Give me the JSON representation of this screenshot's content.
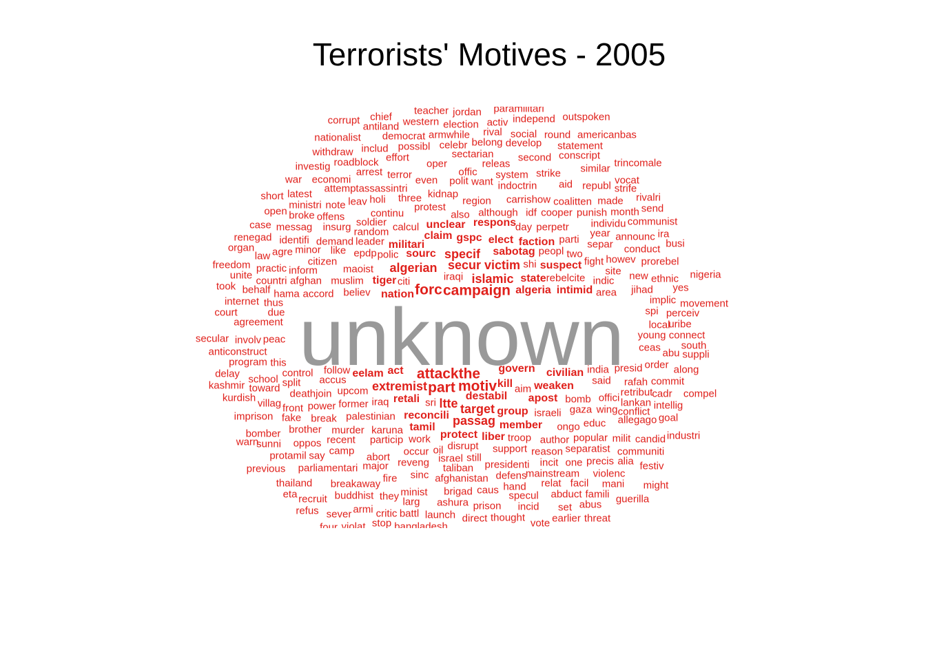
{
  "title": "Terrorists' Motives - 2005",
  "colors": {
    "words": "#e0201b",
    "dominant": "#999999"
  },
  "dominant_word": "unknown",
  "words": [
    {
      "t": "teacher",
      "s": 1
    },
    {
      "t": "jordan",
      "s": 1
    },
    {
      "t": "paramilitari",
      "s": 1
    },
    {
      "t": "corrupt",
      "s": 1
    },
    {
      "t": "chief",
      "s": 1
    },
    {
      "t": "western",
      "s": 1
    },
    {
      "t": "election",
      "s": 1
    },
    {
      "t": "activ",
      "s": 1
    },
    {
      "t": "independ",
      "s": 1
    },
    {
      "t": "outspoken",
      "s": 1
    },
    {
      "t": "antiland",
      "s": 1
    },
    {
      "t": "nationalist",
      "s": 1
    },
    {
      "t": "democrat",
      "s": 1
    },
    {
      "t": "armwhile",
      "s": 1
    },
    {
      "t": "rival",
      "s": 1
    },
    {
      "t": "social",
      "s": 1
    },
    {
      "t": "round",
      "s": 1
    },
    {
      "t": "americanbas",
      "s": 1
    },
    {
      "t": "includ",
      "s": 1
    },
    {
      "t": "possibl",
      "s": 1
    },
    {
      "t": "celebr",
      "s": 1
    },
    {
      "t": "belong",
      "s": 1
    },
    {
      "t": "develop",
      "s": 1
    },
    {
      "t": "statement",
      "s": 1
    },
    {
      "t": "withdraw",
      "s": 1
    },
    {
      "t": "effort",
      "s": 1
    },
    {
      "t": "sectarian",
      "s": 1
    },
    {
      "t": "second",
      "s": 1
    },
    {
      "t": "conscript",
      "s": 1
    },
    {
      "t": "investig",
      "s": 1
    },
    {
      "t": "roadblock",
      "s": 1
    },
    {
      "t": "oper",
      "s": 1
    },
    {
      "t": "releas",
      "s": 1
    },
    {
      "t": "trincomale",
      "s": 1
    },
    {
      "t": "arrest",
      "s": 1
    },
    {
      "t": "terror",
      "s": 1
    },
    {
      "t": "offic",
      "s": 1
    },
    {
      "t": "system",
      "s": 1
    },
    {
      "t": "strike",
      "s": 1
    },
    {
      "t": "similar",
      "s": 1
    },
    {
      "t": "war",
      "s": 1
    },
    {
      "t": "economi",
      "s": 1
    },
    {
      "t": "even",
      "s": 1
    },
    {
      "t": "polit",
      "s": 1
    },
    {
      "t": "want",
      "s": 1
    },
    {
      "t": "indoctrin",
      "s": 1
    },
    {
      "t": "aid",
      "s": 1
    },
    {
      "t": "republ",
      "s": 1
    },
    {
      "t": "vocat",
      "s": 1
    },
    {
      "t": "attemptassassintri",
      "s": 1
    },
    {
      "t": "strife",
      "s": 1
    },
    {
      "t": "short",
      "s": 1
    },
    {
      "t": "latest",
      "s": 1
    },
    {
      "t": "kidnap",
      "s": 1
    },
    {
      "t": "carrishow",
      "s": 1
    },
    {
      "t": "rivalri",
      "s": 1
    },
    {
      "t": "ministri",
      "s": 1
    },
    {
      "t": "note",
      "s": 1
    },
    {
      "t": "leav",
      "s": 1
    },
    {
      "t": "holi",
      "s": 1
    },
    {
      "t": "three",
      "s": 1
    },
    {
      "t": "region",
      "s": 1
    },
    {
      "t": "coalitten",
      "s": 1
    },
    {
      "t": "made",
      "s": 1
    },
    {
      "t": "protest",
      "s": 1
    },
    {
      "t": "send",
      "s": 1
    },
    {
      "t": "open",
      "s": 1
    },
    {
      "t": "broke",
      "s": 1
    },
    {
      "t": "offens",
      "s": 1
    },
    {
      "t": "continu",
      "s": 1
    },
    {
      "t": "also",
      "s": 1
    },
    {
      "t": "although",
      "s": 1
    },
    {
      "t": "idf",
      "s": 1
    },
    {
      "t": "cooper",
      "s": 1
    },
    {
      "t": "punish",
      "s": 1
    },
    {
      "t": "month",
      "s": 1
    },
    {
      "t": "soldier",
      "s": 1
    },
    {
      "t": "communist",
      "s": 1
    },
    {
      "t": "case",
      "s": 1
    },
    {
      "t": "messag",
      "s": 1
    },
    {
      "t": "insurg",
      "s": 1
    },
    {
      "t": "calcul",
      "s": 1
    },
    {
      "t": "unclear",
      "s": 2
    },
    {
      "t": "respons",
      "s": 2
    },
    {
      "t": "day",
      "s": 1
    },
    {
      "t": "perpetr",
      "s": 1
    },
    {
      "t": "individu",
      "s": 1
    },
    {
      "t": "random",
      "s": 1
    },
    {
      "t": "year",
      "s": 1
    },
    {
      "t": "ira",
      "s": 1
    },
    {
      "t": "renegad",
      "s": 1
    },
    {
      "t": "identifi",
      "s": 1
    },
    {
      "t": "demand",
      "s": 1
    },
    {
      "t": "leader",
      "s": 1
    },
    {
      "t": "claim",
      "s": 2
    },
    {
      "t": "gspc",
      "s": 2
    },
    {
      "t": "elect",
      "s": 2
    },
    {
      "t": "faction",
      "s": 2
    },
    {
      "t": "parti",
      "s": 1
    },
    {
      "t": "announc",
      "s": 1
    },
    {
      "t": "organ",
      "s": 1
    },
    {
      "t": "militari",
      "s": 2
    },
    {
      "t": "separ",
      "s": 1
    },
    {
      "t": "busi",
      "s": 1
    },
    {
      "t": "law",
      "s": 1
    },
    {
      "t": "agre",
      "s": 1
    },
    {
      "t": "minor",
      "s": 1
    },
    {
      "t": "like",
      "s": 1
    },
    {
      "t": "epdp",
      "s": 1
    },
    {
      "t": "polic",
      "s": 1
    },
    {
      "t": "sourc",
      "s": 2
    },
    {
      "t": "specif",
      "s": 3
    },
    {
      "t": "sabotag",
      "s": 2
    },
    {
      "t": "peopl",
      "s": 1
    },
    {
      "t": "two",
      "s": 1
    },
    {
      "t": "conduct",
      "s": 1
    },
    {
      "t": "citizen",
      "s": 1
    },
    {
      "t": "fight",
      "s": 1
    },
    {
      "t": "howev",
      "s": 1
    },
    {
      "t": "prorebel",
      "s": 1
    },
    {
      "t": "freedom",
      "s": 1
    },
    {
      "t": "practic",
      "s": 1
    },
    {
      "t": "inform",
      "s": 1
    },
    {
      "t": "maoist",
      "s": 1
    },
    {
      "t": "algerian",
      "s": 3
    },
    {
      "t": "secur",
      "s": 3
    },
    {
      "t": "victim",
      "s": 3
    },
    {
      "t": "shi",
      "s": 1
    },
    {
      "t": "suspect",
      "s": 2
    },
    {
      "t": "site",
      "s": 1
    },
    {
      "t": "unite",
      "s": 1
    },
    {
      "t": "iraqi",
      "s": 1
    },
    {
      "t": "islamic",
      "s": 3
    },
    {
      "t": "state",
      "s": 2
    },
    {
      "t": "rebelcite",
      "s": 1
    },
    {
      "t": "new",
      "s": 1
    },
    {
      "t": "ethnic",
      "s": 1
    },
    {
      "t": "nigeria",
      "s": 1
    },
    {
      "t": "took",
      "s": 1
    },
    {
      "t": "countri",
      "s": 1
    },
    {
      "t": "afghan",
      "s": 1
    },
    {
      "t": "muslim",
      "s": 1
    },
    {
      "t": "tiger",
      "s": 2
    },
    {
      "t": "citi",
      "s": 1
    },
    {
      "t": "indic",
      "s": 1
    },
    {
      "t": "behalf",
      "s": 1
    },
    {
      "t": "hama",
      "s": 1
    },
    {
      "t": "accord",
      "s": 1
    },
    {
      "t": "believ",
      "s": 1
    },
    {
      "t": "forc",
      "s": 4
    },
    {
      "t": "campaign",
      "s": 4
    },
    {
      "t": "algeria",
      "s": 2
    },
    {
      "t": "intimid",
      "s": 2
    },
    {
      "t": "area",
      "s": 1
    },
    {
      "t": "jihad",
      "s": 1
    },
    {
      "t": "yes",
      "s": 1
    },
    {
      "t": "nation",
      "s": 2
    },
    {
      "t": "internet",
      "s": 1
    },
    {
      "t": "thus",
      "s": 1
    },
    {
      "t": "implic",
      "s": 1
    },
    {
      "t": "movement",
      "s": 1
    },
    {
      "t": "court",
      "s": 1
    },
    {
      "t": "due",
      "s": 1
    },
    {
      "t": "spi",
      "s": 1
    },
    {
      "t": "perceiv",
      "s": 1
    },
    {
      "t": "agreement",
      "s": 1
    },
    {
      "t": "local",
      "s": 1
    },
    {
      "t": "uribe",
      "s": 1
    },
    {
      "t": "young",
      "s": 1
    },
    {
      "t": "connect",
      "s": 1
    },
    {
      "t": "secular",
      "s": 1
    },
    {
      "t": "involv",
      "s": 1
    },
    {
      "t": "peac",
      "s": 1
    },
    {
      "t": "south",
      "s": 1
    },
    {
      "t": "anticonstruct",
      "s": 1
    },
    {
      "t": "ceas",
      "s": 1
    },
    {
      "t": "abu",
      "s": 1
    },
    {
      "t": "suppli",
      "s": 1
    },
    {
      "t": "program",
      "s": 1
    },
    {
      "t": "this",
      "s": 1
    },
    {
      "t": "order",
      "s": 1
    },
    {
      "t": "govern",
      "s": 2
    },
    {
      "t": "attackthe",
      "s": 4
    },
    {
      "t": "india",
      "s": 1
    },
    {
      "t": "presid",
      "s": 1
    },
    {
      "t": "along",
      "s": 1
    },
    {
      "t": "delay",
      "s": 1
    },
    {
      "t": "control",
      "s": 1
    },
    {
      "t": "follow",
      "s": 1
    },
    {
      "t": "eelam",
      "s": 2
    },
    {
      "t": "act",
      "s": 2
    },
    {
      "t": "civilian",
      "s": 2
    },
    {
      "t": "school",
      "s": 1
    },
    {
      "t": "accus",
      "s": 1
    },
    {
      "t": "kill",
      "s": 2
    },
    {
      "t": "said",
      "s": 1
    },
    {
      "t": "rafah",
      "s": 1
    },
    {
      "t": "commit",
      "s": 1
    },
    {
      "t": "kashmir",
      "s": 1
    },
    {
      "t": "split",
      "s": 1
    },
    {
      "t": "extremist",
      "s": 3
    },
    {
      "t": "part",
      "s": 4
    },
    {
      "t": "motiv",
      "s": 4
    },
    {
      "t": "weaken",
      "s": 2
    },
    {
      "t": "toward",
      "s": 1
    },
    {
      "t": "upcom",
      "s": 1
    },
    {
      "t": "aim",
      "s": 1
    },
    {
      "t": "retribut",
      "s": 1
    },
    {
      "t": "cadr",
      "s": 1
    },
    {
      "t": "compel",
      "s": 1
    },
    {
      "t": "kurdish",
      "s": 1
    },
    {
      "t": "deathjoin",
      "s": 1
    },
    {
      "t": "retali",
      "s": 2
    },
    {
      "t": "destabil",
      "s": 2
    },
    {
      "t": "apost",
      "s": 2
    },
    {
      "t": "bomb",
      "s": 1
    },
    {
      "t": "offici",
      "s": 1
    },
    {
      "t": "villag",
      "s": 1
    },
    {
      "t": "former",
      "s": 1
    },
    {
      "t": "iraq",
      "s": 1
    },
    {
      "t": "sri",
      "s": 1
    },
    {
      "t": "ltte",
      "s": 3
    },
    {
      "t": "lankan",
      "s": 1
    },
    {
      "t": "intellig",
      "s": 1
    },
    {
      "t": "front",
      "s": 1
    },
    {
      "t": "power",
      "s": 1
    },
    {
      "t": "target",
      "s": 3
    },
    {
      "t": "group",
      "s": 2
    },
    {
      "t": "israeli",
      "s": 1
    },
    {
      "t": "gaza",
      "s": 1
    },
    {
      "t": "wing",
      "s": 1
    },
    {
      "t": "conflict",
      "s": 1
    },
    {
      "t": "imprison",
      "s": 1
    },
    {
      "t": "fake",
      "s": 1
    },
    {
      "t": "break",
      "s": 1
    },
    {
      "t": "palestinian",
      "s": 1
    },
    {
      "t": "reconcili",
      "s": 2
    },
    {
      "t": "passag",
      "s": 3
    },
    {
      "t": "member",
      "s": 2
    },
    {
      "t": "educ",
      "s": 1
    },
    {
      "t": "allegago",
      "s": 1
    },
    {
      "t": "goal",
      "s": 1
    },
    {
      "t": "ongo",
      "s": 1
    },
    {
      "t": "brother",
      "s": 1
    },
    {
      "t": "murder",
      "s": 1
    },
    {
      "t": "karuna",
      "s": 1
    },
    {
      "t": "tamil",
      "s": 2
    },
    {
      "t": "bomber",
      "s": 1
    },
    {
      "t": "protect",
      "s": 2
    },
    {
      "t": "liber",
      "s": 2
    },
    {
      "t": "troop",
      "s": 1
    },
    {
      "t": "author",
      "s": 1
    },
    {
      "t": "popular",
      "s": 1
    },
    {
      "t": "milit",
      "s": 1
    },
    {
      "t": "candid",
      "s": 1
    },
    {
      "t": "industri",
      "s": 1
    },
    {
      "t": "warn",
      "s": 1
    },
    {
      "t": "sunni",
      "s": 1
    },
    {
      "t": "oppos",
      "s": 1
    },
    {
      "t": "recent",
      "s": 1
    },
    {
      "t": "particip",
      "s": 1
    },
    {
      "t": "work",
      "s": 1
    },
    {
      "t": "disrupt",
      "s": 1
    },
    {
      "t": "support",
      "s": 1
    },
    {
      "t": "separatist",
      "s": 1
    },
    {
      "t": "camp",
      "s": 1
    },
    {
      "t": "oil",
      "s": 1
    },
    {
      "t": "occur",
      "s": 1
    },
    {
      "t": "reason",
      "s": 1
    },
    {
      "t": "communiti",
      "s": 1
    },
    {
      "t": "protamil",
      "s": 1
    },
    {
      "t": "say",
      "s": 1
    },
    {
      "t": "abort",
      "s": 1
    },
    {
      "t": "israel",
      "s": 1
    },
    {
      "t": "still",
      "s": 1
    },
    {
      "t": "presidenti",
      "s": 1
    },
    {
      "t": "incit",
      "s": 1
    },
    {
      "t": "one",
      "s": 1
    },
    {
      "t": "precis",
      "s": 1
    },
    {
      "t": "alia",
      "s": 1
    },
    {
      "t": "previous",
      "s": 1
    },
    {
      "t": "parliamentari",
      "s": 1
    },
    {
      "t": "major",
      "s": 1
    },
    {
      "t": "reveng",
      "s": 1
    },
    {
      "t": "taliban",
      "s": 1
    },
    {
      "t": "festiv",
      "s": 1
    },
    {
      "t": "mainstream",
      "s": 1
    },
    {
      "t": "violenc",
      "s": 1
    },
    {
      "t": "fire",
      "s": 1
    },
    {
      "t": "sinc",
      "s": 1
    },
    {
      "t": "afghanistan",
      "s": 1
    },
    {
      "t": "defens",
      "s": 1
    },
    {
      "t": "thailand",
      "s": 1
    },
    {
      "t": "breakaway",
      "s": 1
    },
    {
      "t": "hand",
      "s": 1
    },
    {
      "t": "relat",
      "s": 1
    },
    {
      "t": "facil",
      "s": 1
    },
    {
      "t": "mani",
      "s": 1
    },
    {
      "t": "might",
      "s": 1
    },
    {
      "t": "eta",
      "s": 1
    },
    {
      "t": "recruit",
      "s": 1
    },
    {
      "t": "buddhist",
      "s": 1
    },
    {
      "t": "they",
      "s": 1
    },
    {
      "t": "minist",
      "s": 1
    },
    {
      "t": "brigad",
      "s": 1
    },
    {
      "t": "caus",
      "s": 1
    },
    {
      "t": "specul",
      "s": 1
    },
    {
      "t": "abduct",
      "s": 1
    },
    {
      "t": "famili",
      "s": 1
    },
    {
      "t": "guerilla",
      "s": 1
    },
    {
      "t": "larg",
      "s": 1
    },
    {
      "t": "ashura",
      "s": 1
    },
    {
      "t": "refus",
      "s": 1
    },
    {
      "t": "armi",
      "s": 1
    },
    {
      "t": "prison",
      "s": 1
    },
    {
      "t": "incid",
      "s": 1
    },
    {
      "t": "set",
      "s": 1
    },
    {
      "t": "abus",
      "s": 1
    },
    {
      "t": "sever",
      "s": 1
    },
    {
      "t": "critic",
      "s": 1
    },
    {
      "t": "battl",
      "s": 1
    },
    {
      "t": "launch",
      "s": 1
    },
    {
      "t": "direct",
      "s": 1
    },
    {
      "t": "thought",
      "s": 1
    },
    {
      "t": "earlier",
      "s": 1
    },
    {
      "t": "threat",
      "s": 1
    },
    {
      "t": "stop",
      "s": 1
    },
    {
      "t": "vote",
      "s": 1
    },
    {
      "t": "four",
      "s": 1
    },
    {
      "t": "violat",
      "s": 1
    },
    {
      "t": "bangladesh",
      "s": 1
    }
  ]
}
